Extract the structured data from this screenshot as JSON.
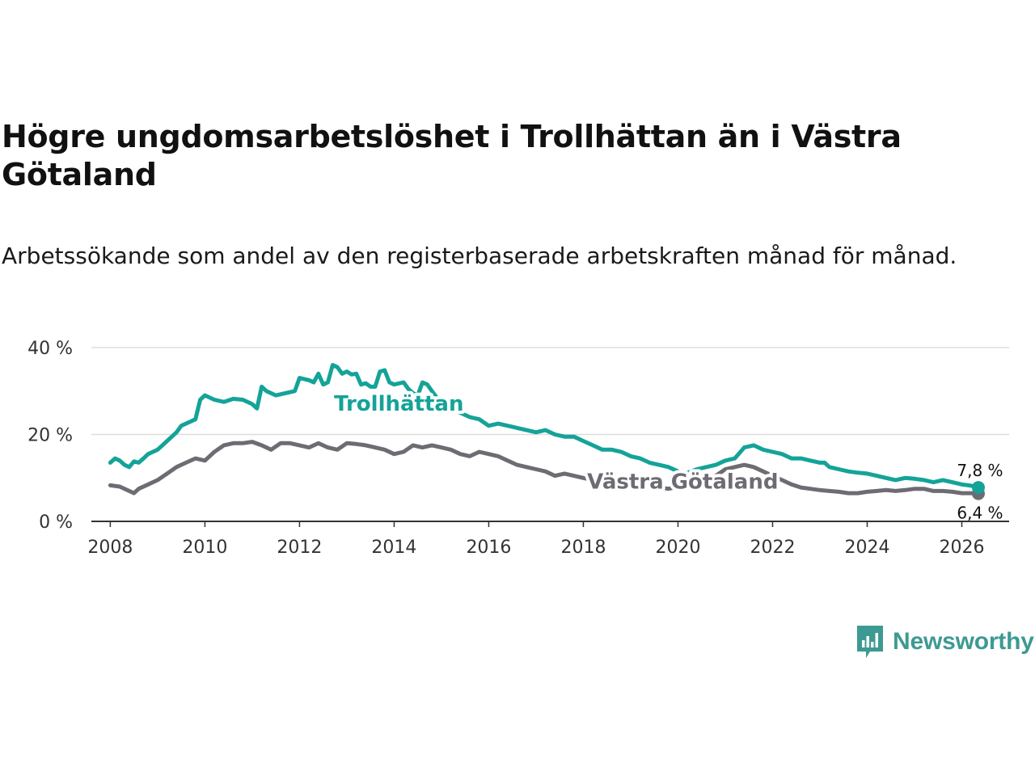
{
  "title": "Högre ungdomsarbetslöshet i Trollhättan än i Västra Götaland",
  "subtitle": "Arbetssökande som andel av den registerbaserade arbetskraften månad för månad.",
  "brand": "Newsworthy",
  "colors": {
    "trollhattan": "#14a398",
    "vastra_gotaland": "#6e6b73",
    "grid": "#dddddd",
    "axis": "#333333",
    "brand": "#3d9a92"
  },
  "chart_data": {
    "type": "line",
    "title": "Högre ungdomsarbetslöshet i Trollhättan än i Västra Götaland",
    "xlabel": "",
    "ylabel": "",
    "xlim": [
      2007.6,
      2027.0
    ],
    "ylim": [
      0,
      40
    ],
    "x_ticks": [
      2008,
      2010,
      2012,
      2014,
      2016,
      2018,
      2020,
      2022,
      2024,
      2026
    ],
    "x_tick_labels": [
      "2008",
      "2010",
      "2012",
      "2014",
      "2016",
      "2018",
      "2020",
      "2022",
      "2024",
      "2026"
    ],
    "y_ticks": [
      0,
      20,
      40
    ],
    "y_tick_labels": [
      "0 %",
      "20 %",
      "40 %"
    ],
    "grid": true,
    "series": [
      {
        "name": "Trollhättan",
        "label": "Trollhättan",
        "end_label": "7,8 %",
        "points": [
          [
            2008.0,
            13.5
          ],
          [
            2008.1,
            14.5
          ],
          [
            2008.2,
            14.0
          ],
          [
            2008.3,
            13.0
          ],
          [
            2008.4,
            12.5
          ],
          [
            2008.5,
            13.8
          ],
          [
            2008.6,
            13.5
          ],
          [
            2008.7,
            14.5
          ],
          [
            2008.8,
            15.5
          ],
          [
            2008.9,
            16.0
          ],
          [
            2009.0,
            16.5
          ],
          [
            2009.2,
            18.5
          ],
          [
            2009.4,
            20.5
          ],
          [
            2009.5,
            22.0
          ],
          [
            2009.7,
            23.0
          ],
          [
            2009.8,
            23.5
          ],
          [
            2009.9,
            28.0
          ],
          [
            2010.0,
            29.0
          ],
          [
            2010.2,
            28.0
          ],
          [
            2010.4,
            27.5
          ],
          [
            2010.6,
            28.2
          ],
          [
            2010.8,
            28.0
          ],
          [
            2011.0,
            27.0
          ],
          [
            2011.1,
            26.0
          ],
          [
            2011.2,
            31.0
          ],
          [
            2011.3,
            30.0
          ],
          [
            2011.5,
            29.0
          ],
          [
            2011.7,
            29.5
          ],
          [
            2011.9,
            30.0
          ],
          [
            2012.0,
            33.0
          ],
          [
            2012.2,
            32.5
          ],
          [
            2012.3,
            32.0
          ],
          [
            2012.4,
            34.0
          ],
          [
            2012.5,
            31.5
          ],
          [
            2012.6,
            32.0
          ],
          [
            2012.7,
            36.0
          ],
          [
            2012.8,
            35.5
          ],
          [
            2012.9,
            34.0
          ],
          [
            2013.0,
            34.5
          ],
          [
            2013.1,
            33.8
          ],
          [
            2013.2,
            34.0
          ],
          [
            2013.3,
            31.5
          ],
          [
            2013.4,
            31.8
          ],
          [
            2013.5,
            31.0
          ],
          [
            2013.6,
            31.0
          ],
          [
            2013.7,
            34.5
          ],
          [
            2013.8,
            34.8
          ],
          [
            2013.9,
            32.0
          ],
          [
            2014.0,
            31.5
          ],
          [
            2014.2,
            32.0
          ],
          [
            2014.3,
            30.5
          ],
          [
            2014.4,
            29.5
          ],
          [
            2014.5,
            29.0
          ],
          [
            2014.6,
            32.0
          ],
          [
            2014.7,
            31.5
          ],
          [
            2014.8,
            30.0
          ],
          [
            2014.9,
            28.5
          ],
          [
            2015.0,
            28.0
          ],
          [
            2015.2,
            26.0
          ],
          [
            2015.4,
            25.0
          ],
          [
            2015.6,
            24.0
          ],
          [
            2015.8,
            23.5
          ],
          [
            2016.0,
            22.0
          ],
          [
            2016.2,
            22.5
          ],
          [
            2016.4,
            22.0
          ],
          [
            2016.6,
            21.5
          ],
          [
            2016.8,
            21.0
          ],
          [
            2017.0,
            20.5
          ],
          [
            2017.2,
            21.0
          ],
          [
            2017.4,
            20.0
          ],
          [
            2017.6,
            19.5
          ],
          [
            2017.8,
            19.5
          ],
          [
            2018.0,
            18.5
          ],
          [
            2018.2,
            17.5
          ],
          [
            2018.4,
            16.5
          ],
          [
            2018.6,
            16.5
          ],
          [
            2018.8,
            16.0
          ],
          [
            2019.0,
            15.0
          ],
          [
            2019.2,
            14.5
          ],
          [
            2019.4,
            13.5
          ],
          [
            2019.6,
            13.0
          ],
          [
            2019.8,
            12.5
          ],
          [
            2020.0,
            11.5
          ],
          [
            2020.1,
            11.0
          ],
          [
            2020.2,
            11.2
          ],
          [
            2020.4,
            12.0
          ],
          [
            2020.6,
            12.5
          ],
          [
            2020.8,
            13.0
          ],
          [
            2021.0,
            14.0
          ],
          [
            2021.2,
            14.5
          ],
          [
            2021.4,
            17.0
          ],
          [
            2021.6,
            17.5
          ],
          [
            2021.8,
            16.5
          ],
          [
            2022.0,
            16.0
          ],
          [
            2022.2,
            15.5
          ],
          [
            2022.4,
            14.5
          ],
          [
            2022.6,
            14.5
          ],
          [
            2022.8,
            14.0
          ],
          [
            2023.0,
            13.5
          ],
          [
            2023.1,
            13.5
          ],
          [
            2023.2,
            12.5
          ],
          [
            2023.4,
            12.0
          ],
          [
            2023.6,
            11.5
          ],
          [
            2023.8,
            11.2
          ],
          [
            2024.0,
            11.0
          ],
          [
            2024.2,
            10.5
          ],
          [
            2024.4,
            10.0
          ],
          [
            2024.6,
            9.5
          ],
          [
            2024.8,
            10.0
          ],
          [
            2025.0,
            9.8
          ],
          [
            2025.2,
            9.5
          ],
          [
            2025.4,
            9.0
          ],
          [
            2025.6,
            9.5
          ],
          [
            2025.8,
            9.0
          ],
          [
            2026.0,
            8.5
          ],
          [
            2026.2,
            8.2
          ],
          [
            2026.35,
            7.8
          ]
        ]
      },
      {
        "name": "Västra Götaland",
        "label": "Västra Götaland",
        "end_label": "6,4 %",
        "points": [
          [
            2008.0,
            8.3
          ],
          [
            2008.2,
            8.0
          ],
          [
            2008.4,
            7.0
          ],
          [
            2008.5,
            6.5
          ],
          [
            2008.6,
            7.5
          ],
          [
            2008.8,
            8.5
          ],
          [
            2009.0,
            9.5
          ],
          [
            2009.2,
            11.0
          ],
          [
            2009.4,
            12.5
          ],
          [
            2009.6,
            13.5
          ],
          [
            2009.8,
            14.5
          ],
          [
            2010.0,
            14.0
          ],
          [
            2010.2,
            16.0
          ],
          [
            2010.4,
            17.5
          ],
          [
            2010.6,
            18.0
          ],
          [
            2010.8,
            18.0
          ],
          [
            2011.0,
            18.3
          ],
          [
            2011.2,
            17.5
          ],
          [
            2011.4,
            16.5
          ],
          [
            2011.6,
            18.0
          ],
          [
            2011.8,
            18.0
          ],
          [
            2012.0,
            17.5
          ],
          [
            2012.2,
            17.0
          ],
          [
            2012.4,
            18.0
          ],
          [
            2012.6,
            17.0
          ],
          [
            2012.8,
            16.5
          ],
          [
            2013.0,
            18.0
          ],
          [
            2013.2,
            17.8
          ],
          [
            2013.4,
            17.5
          ],
          [
            2013.6,
            17.0
          ],
          [
            2013.8,
            16.5
          ],
          [
            2014.0,
            15.5
          ],
          [
            2014.2,
            16.0
          ],
          [
            2014.4,
            17.5
          ],
          [
            2014.6,
            17.0
          ],
          [
            2014.8,
            17.5
          ],
          [
            2015.0,
            17.0
          ],
          [
            2015.2,
            16.5
          ],
          [
            2015.4,
            15.5
          ],
          [
            2015.6,
            15.0
          ],
          [
            2015.8,
            16.0
          ],
          [
            2016.0,
            15.5
          ],
          [
            2016.2,
            15.0
          ],
          [
            2016.4,
            14.0
          ],
          [
            2016.6,
            13.0
          ],
          [
            2016.8,
            12.5
          ],
          [
            2017.0,
            12.0
          ],
          [
            2017.2,
            11.5
          ],
          [
            2017.4,
            10.5
          ],
          [
            2017.6,
            11.0
          ],
          [
            2017.8,
            10.5
          ],
          [
            2018.0,
            10.0
          ],
          [
            2018.2,
            9.5
          ],
          [
            2018.4,
            9.0
          ],
          [
            2018.6,
            9.5
          ],
          [
            2018.8,
            9.0
          ],
          [
            2019.0,
            8.5
          ],
          [
            2019.2,
            8.2
          ],
          [
            2019.4,
            8.0
          ],
          [
            2019.6,
            7.8
          ],
          [
            2019.8,
            7.5
          ],
          [
            2020.0,
            8.0
          ],
          [
            2020.2,
            8.5
          ],
          [
            2020.4,
            9.0
          ],
          [
            2020.6,
            9.5
          ],
          [
            2020.8,
            10.5
          ],
          [
            2021.0,
            12.0
          ],
          [
            2021.2,
            12.5
          ],
          [
            2021.4,
            13.0
          ],
          [
            2021.6,
            12.5
          ],
          [
            2021.8,
            11.5
          ],
          [
            2022.0,
            10.5
          ],
          [
            2022.2,
            9.5
          ],
          [
            2022.4,
            8.5
          ],
          [
            2022.6,
            7.8
          ],
          [
            2022.8,
            7.5
          ],
          [
            2023.0,
            7.2
          ],
          [
            2023.2,
            7.0
          ],
          [
            2023.4,
            6.8
          ],
          [
            2023.6,
            6.5
          ],
          [
            2023.8,
            6.5
          ],
          [
            2024.0,
            6.8
          ],
          [
            2024.2,
            7.0
          ],
          [
            2024.4,
            7.2
          ],
          [
            2024.6,
            7.0
          ],
          [
            2024.8,
            7.2
          ],
          [
            2025.0,
            7.5
          ],
          [
            2025.2,
            7.5
          ],
          [
            2025.4,
            7.0
          ],
          [
            2025.6,
            7.0
          ],
          [
            2025.8,
            6.8
          ],
          [
            2026.0,
            6.5
          ],
          [
            2026.2,
            6.5
          ],
          [
            2026.35,
            6.4
          ]
        ]
      }
    ]
  }
}
